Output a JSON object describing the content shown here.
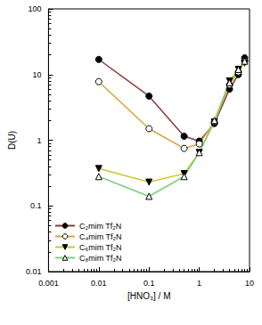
{
  "chart_data": {
    "type": "line",
    "x_label": "[HNO₃] / M",
    "y_label": "D(U)",
    "log": true,
    "grid": false,
    "legend": "lower left",
    "xlim": [
      0.001,
      10
    ],
    "xticks": [
      0.001,
      0.01,
      0.1,
      1,
      10
    ],
    "ylim": [
      0.01,
      100
    ],
    "yticks": [
      0.01,
      0.1,
      1,
      10,
      100
    ],
    "x": [
      0.01,
      0.1,
      0.5,
      1,
      2,
      4,
      6,
      8
    ],
    "series": [
      {
        "name": "C₂mim Tf₂N",
        "color": "#8b3a3a",
        "marker": "circle",
        "values": [
          17,
          4.7,
          1.15,
          0.97,
          1.8,
          6,
          10,
          18
        ]
      },
      {
        "name": "C₄mim Tf₂N",
        "color": "#d9a43a",
        "marker": "circle_open",
        "values": [
          7.8,
          1.5,
          0.75,
          0.88,
          1.9,
          7,
          11,
          16
        ]
      },
      {
        "name": "C₆mim Tf₂N",
        "color": "#c9c930",
        "marker": "triangle_down",
        "values": [
          0.37,
          0.23,
          0.31,
          0.65,
          1.9,
          8,
          12,
          15
        ]
      },
      {
        "name": "C₈mim Tf₂N",
        "color": "#7ccf7c",
        "marker": "triangle_open",
        "values": [
          0.28,
          0.14,
          0.28,
          0.65,
          2,
          7.5,
          12,
          16
        ]
      }
    ]
  }
}
